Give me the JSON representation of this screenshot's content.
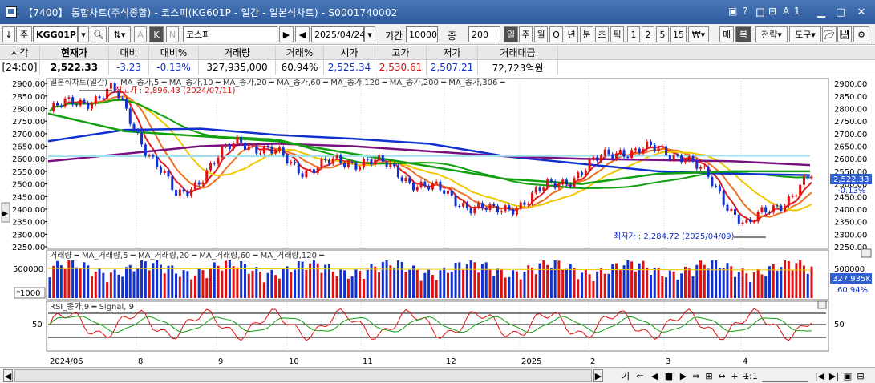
{
  "window": {
    "title": "【7400】 통합차트(주식종합) - 코스피(KG601P - 일간 - 일본식차트) - S0001740002",
    "title_tools": [
      "▣",
      "?",
      "囗",
      "⊟",
      "A",
      "1"
    ]
  },
  "toolbar": {
    "down_arrow": "↓",
    "market": "주",
    "code": "KGG01P",
    "index_label": "A",
    "k_label": "K",
    "n_label": "N",
    "name": "코스피",
    "date": "2025/04/24",
    "period_label": "기간",
    "period_value": "10000",
    "count_label": "중",
    "count_value": "200",
    "timeframes": [
      "일",
      "주",
      "월",
      "Q",
      "년",
      "분",
      "초",
      "틱",
      "1",
      "2",
      "5",
      "15"
    ],
    "currency": "₩",
    "buy_label": "매",
    "double_label": "복",
    "strategy_label": "전략",
    "tools_label": "도구"
  },
  "quote": {
    "headers": [
      "시각",
      "현재가",
      "대비",
      "대비%",
      "거래량",
      "거래%",
      "시가",
      "고가",
      "저가",
      "거래대금"
    ],
    "values": [
      "[24:00]",
      "2,522.33",
      "-3.23",
      "-0.13%",
      "327,935,000",
      "60.94%",
      "2,525.34",
      "2,530.61",
      "2,507.21",
      "72,723억원"
    ]
  },
  "chart": {
    "price_legend": "일본식차트(일간)",
    "ma_legend": [
      "MA_종가,5",
      "MA_종가,10",
      "MA_종가,20",
      "MA_종가,60",
      "MA_종가,120",
      "MA_종가,200",
      "MA_종가,306"
    ],
    "ma_colors": [
      "#e02020",
      "#f07020",
      "#f0c800",
      "#10a010",
      "#1030d0",
      "#7a1080",
      "#a0e0f0"
    ],
    "high_note": "최고가 : 2,896.43 (2024/07/11)",
    "low_note": "최저가 : 2,284.72 (2025/04/09)",
    "price_axis": [
      "2900.00",
      "2850.00",
      "2800.00",
      "2750.00",
      "2700.00",
      "2650.00",
      "2600.00",
      "2550.00",
      "2500.00",
      "2450.00",
      "2400.00",
      "2350.00",
      "2300.00",
      "2250.00"
    ],
    "current_price_tag": "2,522.33",
    "current_change_tag": "-0.13%",
    "volume_legend": [
      "거래량",
      "MA_거래량,5",
      "MA_거래량,20",
      "MA_거래량,60",
      "MA_거래량,120"
    ],
    "volume_axis": "500000",
    "volume_unit": "*1000",
    "volume_tag": "327,935K",
    "volume_pct_tag": "60.94%",
    "rsi_legend": [
      "RSI_종가,9",
      "Signal, 9"
    ],
    "rsi_axis": "50",
    "x_labels": [
      "2024/06",
      "8",
      "9",
      "10",
      "11",
      "12",
      "2025",
      "2",
      "3",
      "4"
    ]
  },
  "statusbar": {
    "zoom_label": "1:1",
    "buttons": [
      "기",
      "⇐",
      "◀",
      "■",
      "▶",
      "⇛",
      "⊞",
      "↔",
      "+",
      "−"
    ]
  },
  "chart_data": {
    "type": "candlestick",
    "title": "일본식차트(일간)",
    "y_range": [
      2250,
      2910
    ],
    "x_range": [
      "2024/06",
      "2025/04/24"
    ],
    "series_price": [
      {
        "date": "2024/06",
        "close": 2790
      },
      {
        "date": "2024/07/11",
        "close": 2870,
        "high": 2896.43
      },
      {
        "date": "2024/08/05",
        "close": 2440,
        "low": 2390
      },
      {
        "date": "2024/08",
        "close": 2680
      },
      {
        "date": "2024/09",
        "close": 2560
      },
      {
        "date": "2024/10",
        "close": 2600
      },
      {
        "date": "2024/11",
        "close": 2480
      },
      {
        "date": "2024/12",
        "close": 2380
      },
      {
        "date": "2025/01",
        "close": 2500
      },
      {
        "date": "2025/02",
        "close": 2640
      },
      {
        "date": "2025/03",
        "close": 2620
      },
      {
        "date": "2025/04/09",
        "close": 2330,
        "low": 2284.72
      },
      {
        "date": "2025/04/24",
        "close": 2522.33
      }
    ],
    "moving_averages": [
      {
        "name": "MA_종가,200",
        "values": [
          2670,
          2715,
          2720,
          2695,
          2680,
          2660,
          2610,
          2580,
          2550,
          2540,
          2535
        ]
      },
      {
        "name": "MA_종가,306",
        "values": [
          2590,
          2620,
          2650,
          2660,
          2650,
          2630,
          2610,
          2600,
          2595,
          2590,
          2575
        ]
      },
      {
        "name": "MA_종가,120",
        "values": [
          2780,
          2710,
          2690,
          2670,
          2620,
          2570,
          2520,
          2500,
          2540,
          2550,
          2550
        ]
      }
    ],
    "rsi": {
      "levels": [
        50
      ]
    },
    "volume_ylim": [
      0,
      800000
    ]
  }
}
